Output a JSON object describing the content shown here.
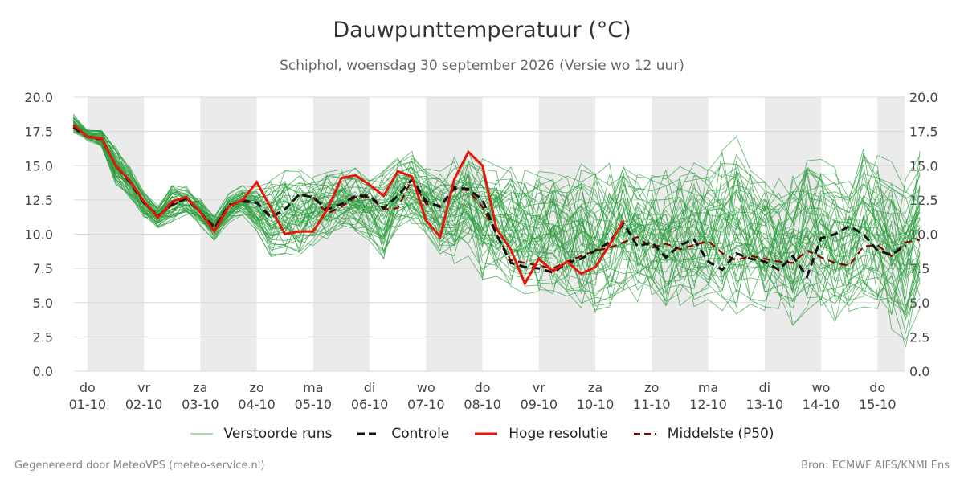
{
  "header": {
    "title": "Dauwpunttemperatuur (°C)",
    "subtitle": "Schiphol, woensdag 30 september 2026 (Versie wo 12 uur)"
  },
  "footer": {
    "left": "Gegenereerd door MeteoVPS (meteo-service.nl)",
    "right": "Bron: ECMWF AIFS/KNMI Ens"
  },
  "legend": {
    "items": [
      {
        "label": "Verstoorde runs",
        "style": "thin",
        "color": "#2e9e3f"
      },
      {
        "label": "Controle",
        "style": "dashed",
        "color": "#111111"
      },
      {
        "label": "Hoge resolutie",
        "style": "solid",
        "color": "#e3170a"
      },
      {
        "label": "Middelste (P50)",
        "style": "dashed",
        "color": "#8b0000"
      }
    ]
  },
  "chart_data": {
    "type": "line",
    "title": "Dauwpunttemperatuur (°C)",
    "ylim": [
      0,
      20
    ],
    "yticks": [
      "0.0",
      "2.5",
      "5.0",
      "7.5",
      "10.0",
      "12.5",
      "15.0",
      "17.5",
      "20.0"
    ],
    "xlim": [
      -0.24,
      14.48
    ],
    "xticks": [
      {
        "day": "do",
        "date": "01-10"
      },
      {
        "day": "vr",
        "date": "02-10"
      },
      {
        "day": "za",
        "date": "03-10"
      },
      {
        "day": "zo",
        "date": "04-10"
      },
      {
        "day": "ma",
        "date": "05-10"
      },
      {
        "day": "di",
        "date": "06-10"
      },
      {
        "day": "wo",
        "date": "07-10"
      },
      {
        "day": "do",
        "date": "08-10"
      },
      {
        "day": "vr",
        "date": "09-10"
      },
      {
        "day": "za",
        "date": "10-10"
      },
      {
        "day": "zo",
        "date": "11-10"
      },
      {
        "day": "ma",
        "date": "12-10"
      },
      {
        "day": "di",
        "date": "13-10"
      },
      {
        "day": "wo",
        "date": "14-10"
      },
      {
        "day": "do",
        "date": "15-10"
      }
    ],
    "x_step_days": 0.25,
    "x_start": -0.25,
    "grid": true,
    "shaded_days": [
      0,
      2,
      4,
      6,
      8,
      10,
      12,
      14
    ],
    "colors": {
      "perturbed": "#2e9e3f",
      "control": "#111111",
      "hires": "#e3170a",
      "median": "#8b0000",
      "shade": "#ebebeb",
      "grid": "#d9d9d9"
    },
    "series": [
      {
        "name": "Hoge resolutie",
        "values": [
          18.0,
          17.1,
          17.0,
          15.0,
          13.9,
          12.4,
          11.2,
          12.4,
          12.7,
          11.6,
          10.2,
          12.0,
          12.5,
          13.8,
          11.9,
          10.0,
          10.2,
          10.2,
          11.8,
          14.1,
          14.3,
          13.6,
          12.8,
          14.6,
          14.2,
          11.0,
          9.8,
          14.0,
          16.0,
          15.0,
          10.4,
          8.9,
          6.4,
          8.2,
          7.3,
          8.0,
          7.1,
          7.6,
          9.2,
          11.0
        ]
      },
      {
        "name": "Controle",
        "values": [
          17.8,
          17.1,
          17.0,
          15.0,
          13.8,
          12.3,
          11.3,
          12.2,
          12.6,
          11.6,
          10.4,
          12.1,
          12.4,
          12.3,
          11.2,
          11.8,
          12.9,
          12.7,
          11.8,
          12.2,
          12.8,
          12.8,
          11.9,
          12.8,
          14.0,
          12.4,
          12.0,
          13.4,
          13.3,
          12.5,
          10.0,
          7.9,
          7.6,
          7.5,
          7.2,
          7.9,
          8.2,
          8.8,
          9.4,
          10.8,
          9.1,
          9.4,
          8.3,
          9.2,
          9.6,
          8.0,
          7.4,
          8.6,
          8.2,
          8.0,
          7.4,
          8.4,
          6.9,
          9.7,
          10.0,
          10.6,
          10.0,
          8.8,
          8.5,
          9.2
        ]
      },
      {
        "name": "Middelste (P50)",
        "values": [
          17.9,
          17.1,
          16.9,
          15.0,
          13.9,
          12.3,
          11.3,
          12.1,
          12.6,
          11.6,
          10.6,
          12.0,
          12.5,
          12.3,
          11.3,
          11.8,
          12.9,
          12.7,
          11.5,
          12.0,
          12.7,
          12.7,
          11.8,
          11.9,
          14.0,
          12.2,
          12.1,
          13.3,
          13.2,
          12.0,
          10.0,
          8.1,
          7.9,
          7.7,
          7.5,
          8.0,
          8.4,
          8.8,
          9.0,
          9.4,
          9.8,
          9.0,
          9.3,
          8.9,
          9.2,
          9.5,
          8.6,
          8.1,
          8.4,
          8.2,
          8.0,
          7.9,
          8.8,
          8.3,
          7.9,
          7.7,
          9.1,
          9.2,
          8.4,
          9.4,
          9.6
        ]
      }
    ],
    "perturbed_runs": {
      "member_count": 50,
      "envelope": {
        "lower": [
          17.3,
          16.8,
          16.3,
          13.6,
          12.6,
          11.2,
          10.4,
          10.8,
          11.3,
          10.6,
          9.5,
          10.8,
          11.3,
          10.2,
          8.3,
          8.4,
          7.9,
          8.9,
          9.5,
          10.1,
          9.8,
          9.2,
          7.8,
          10.2,
          10.3,
          9.8,
          8.2,
          7.8,
          8.4,
          6.5,
          6.4,
          5.6,
          5.2,
          5.4,
          5.3,
          4.4,
          4.1,
          3.8,
          4.2,
          4.4,
          5.0,
          4.6,
          4.0,
          4.6,
          4.6,
          5.1,
          4.2,
          3.8,
          4.4,
          4.2,
          4.0,
          3.0,
          4.4,
          4.5,
          3.5,
          4.2,
          4.5,
          4.0,
          2.6,
          1.1,
          4.5
        ],
        "upper": [
          18.8,
          17.7,
          17.8,
          16.4,
          15.0,
          13.2,
          12.1,
          13.8,
          13.6,
          12.8,
          11.5,
          13.0,
          13.6,
          13.6,
          14.0,
          14.8,
          14.9,
          14.6,
          14.8,
          15.0,
          15.2,
          14.6,
          15.0,
          15.8,
          16.2,
          15.2,
          15.0,
          15.8,
          16.6,
          15.8,
          15.5,
          15.8,
          15.4,
          15.1,
          15.3,
          15.0,
          16.0,
          15.1,
          15.5,
          16.6,
          15.2,
          14.8,
          15.0,
          15.5,
          15.8,
          15.0,
          16.4,
          17.4,
          15.4,
          14.8,
          14.5,
          15.6,
          16.2,
          15.6,
          15.0,
          14.2,
          16.5,
          16.0,
          15.6,
          15.0,
          16.4
        ]
      }
    }
  }
}
